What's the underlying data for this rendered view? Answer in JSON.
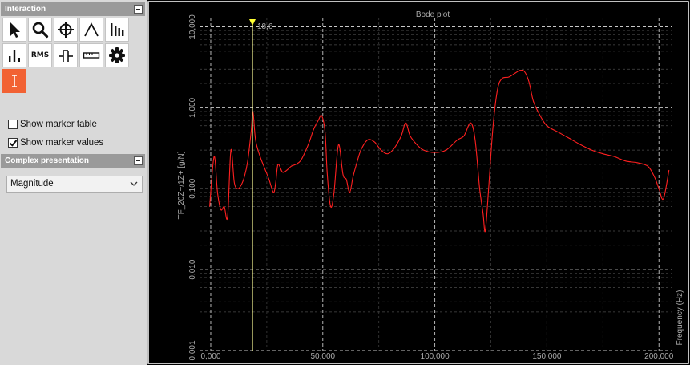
{
  "interaction_panel": {
    "title": "Interaction",
    "tools": [
      {
        "name": "pointer-icon"
      },
      {
        "name": "zoom-icon"
      },
      {
        "name": "crosshair-icon"
      },
      {
        "name": "peak-icon"
      },
      {
        "name": "harmonics-icon"
      },
      {
        "name": "bars-icon"
      },
      {
        "name": "rms-icon",
        "label": "RMS"
      },
      {
        "name": "band-icon"
      },
      {
        "name": "ruler-icon"
      },
      {
        "name": "gear-icon"
      },
      {
        "name": "cursor-marker-icon",
        "active": true
      }
    ],
    "show_marker_table": {
      "label": "Show marker table",
      "checked": false
    },
    "show_marker_values": {
      "label": "Show marker values",
      "checked": true
    }
  },
  "complex_panel": {
    "title": "Complex presentation",
    "selected": "Magnitude"
  },
  "chart_data": {
    "type": "line",
    "title": "Bode plot",
    "ylabel": "TF_20Z+/1Z+ [g/N]",
    "xlabel": "Frequency (Hz)",
    "yscale": "log",
    "ylim": [
      0.001,
      13
    ],
    "xlim": [
      -5000,
      206000
    ],
    "y_ticks": [
      {
        "value": 0.001,
        "label": "0,001"
      },
      {
        "value": 0.01,
        "label": "0,010"
      },
      {
        "value": 0.1,
        "label": "0,100"
      },
      {
        "value": 1,
        "label": "1,000"
      },
      {
        "value": 10,
        "label": "10,000"
      }
    ],
    "x_ticks": [
      {
        "value": 0,
        "label": "0,000"
      },
      {
        "value": 50000,
        "label": "50,000"
      },
      {
        "value": 100000,
        "label": "100,000"
      },
      {
        "value": 150000,
        "label": "150,000"
      },
      {
        "value": 200000,
        "label": "200,000"
      }
    ],
    "grid": true,
    "marker": {
      "x": 18600,
      "label": "18,6",
      "color": "#ffff66"
    },
    "series": [
      {
        "color": "#ff2020",
        "x": [
          -500,
          1500,
          3000,
          4500,
          6000,
          7500,
          9000,
          10500,
          12000,
          13500,
          15000,
          16500,
          18000,
          18800,
          20000,
          22000,
          24000,
          26000,
          28000,
          29000,
          30000,
          32000,
          34000,
          36000,
          38000,
          40000,
          42000,
          44000,
          46000,
          48000,
          49500,
          51000,
          52000,
          53500,
          55000,
          57000,
          59000,
          60500,
          62000,
          63500,
          65000,
          67000,
          70000,
          73000,
          76000,
          79000,
          82000,
          85000,
          87000,
          89000,
          92000,
          95000,
          100000,
          105000,
          110000,
          113000,
          116000,
          118000,
          120000,
          121500,
          122500,
          124000,
          126000,
          128000,
          130000,
          133000,
          136000,
          138000,
          140000,
          142000,
          144000,
          147000,
          150000,
          155000,
          160000,
          165000,
          170000,
          175000,
          180000,
          185000,
          190000,
          195000,
          198000,
          200000,
          202000,
          204500
        ],
        "y": [
          0.06,
          0.25,
          0.09,
          0.055,
          0.06,
          0.045,
          0.3,
          0.12,
          0.1,
          0.11,
          0.14,
          0.22,
          0.5,
          0.9,
          0.4,
          0.25,
          0.18,
          0.13,
          0.09,
          0.12,
          0.2,
          0.16,
          0.17,
          0.19,
          0.2,
          0.22,
          0.28,
          0.38,
          0.55,
          0.7,
          0.8,
          0.5,
          0.15,
          0.06,
          0.09,
          0.35,
          0.15,
          0.13,
          0.09,
          0.14,
          0.2,
          0.3,
          0.4,
          0.38,
          0.3,
          0.27,
          0.32,
          0.45,
          0.65,
          0.45,
          0.35,
          0.3,
          0.28,
          0.3,
          0.4,
          0.45,
          0.65,
          0.4,
          0.1,
          0.05,
          0.03,
          0.1,
          0.6,
          1.7,
          2.3,
          2.4,
          2.7,
          2.9,
          2.8,
          2.1,
          1.2,
          0.8,
          0.6,
          0.5,
          0.42,
          0.35,
          0.3,
          0.27,
          0.25,
          0.22,
          0.21,
          0.19,
          0.14,
          0.1,
          0.075,
          0.17
        ]
      }
    ]
  }
}
